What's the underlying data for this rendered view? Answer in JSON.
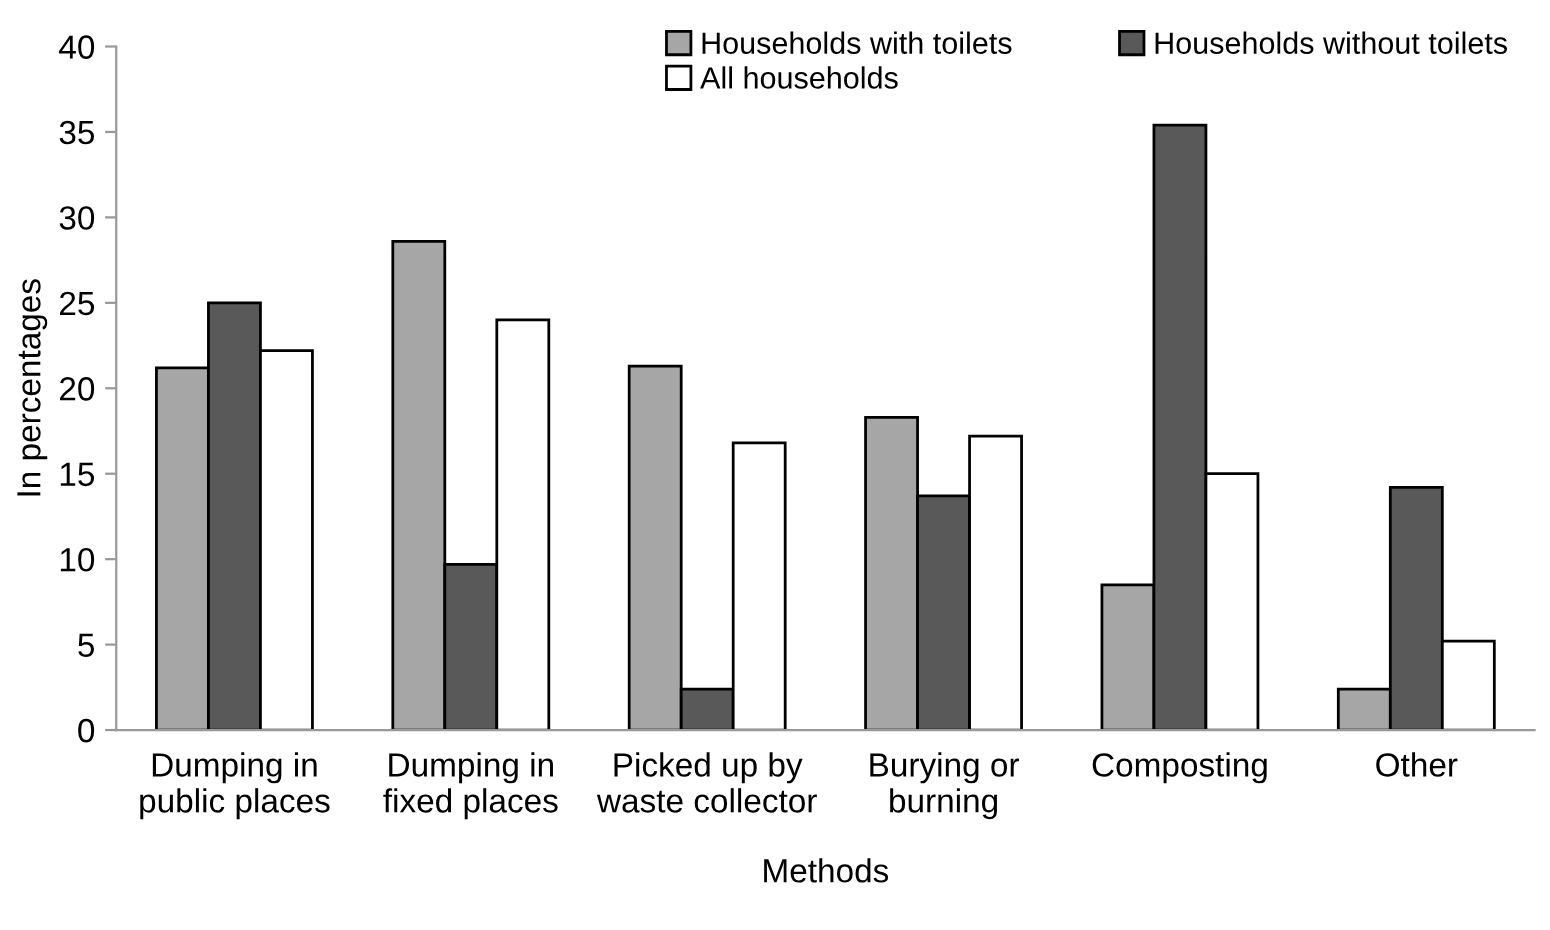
{
  "chart_data": {
    "type": "bar",
    "xlabel": "Methods",
    "ylabel": "In percentages",
    "categories": [
      "Dumping in\npublic places",
      "Dumping in\nfixed places",
      "Picked up by\nwaste collector",
      "Burying or\nburning",
      "Composting",
      "Other"
    ],
    "series": [
      {
        "name": "Households with toilets",
        "color": "#a6a6a6",
        "values": [
          21.2,
          28.6,
          21.3,
          18.3,
          8.5,
          2.4
        ]
      },
      {
        "name": "Households without toilets",
        "color": "#595959",
        "values": [
          25.0,
          9.7,
          2.4,
          13.7,
          35.4,
          14.2
        ]
      },
      {
        "name": "All households",
        "color": "#ffffff",
        "values": [
          22.2,
          24.0,
          16.8,
          17.2,
          15.0,
          5.2
        ]
      }
    ],
    "ylim": [
      0,
      40
    ],
    "yticks": [
      0,
      5,
      10,
      15,
      20,
      25,
      30,
      35,
      40
    ],
    "grid": false,
    "legend": "top right"
  }
}
